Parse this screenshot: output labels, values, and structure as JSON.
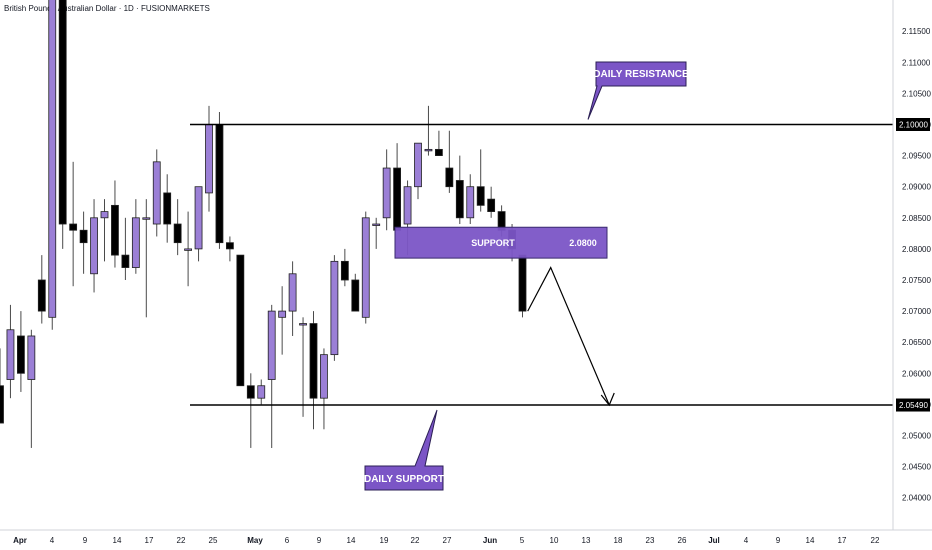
{
  "title": "British Pound / Australian Dollar · 1D · FUSIONMARKETS",
  "colors": {
    "up_fill": "#9b7fd6",
    "down_fill": "#000000",
    "wick": "#4a4a4a",
    "annotation": "#7b55c6",
    "line": "#000000"
  },
  "chart_data": {
    "type": "candlestick",
    "title": "British Pound / Australian Dollar · 1D · FUSIONMARKETS",
    "ylim": [
      2.036,
      2.122
    ],
    "y_ticks": [
      2.04,
      2.045,
      2.05,
      2.055,
      2.06,
      2.065,
      2.07,
      2.075,
      2.08,
      2.085,
      2.09,
      2.095,
      2.1,
      2.105,
      2.11,
      2.115
    ],
    "x_ticks": [
      "Apr",
      "4",
      "9",
      "14",
      "17",
      "22",
      "25",
      "May",
      "6",
      "9",
      "14",
      "19",
      "22",
      "27",
      "Jun",
      "5",
      "10",
      "13",
      "18",
      "23",
      "26",
      "Jul",
      "4",
      "9",
      "14",
      "17",
      "22"
    ],
    "candles": [
      {
        "o": 2.058,
        "h": 2.064,
        "l": 2.052,
        "c": 2.052
      },
      {
        "o": 2.059,
        "h": 2.071,
        "l": 2.056,
        "c": 2.067
      },
      {
        "o": 2.066,
        "h": 2.07,
        "l": 2.057,
        "c": 2.06
      },
      {
        "o": 2.059,
        "h": 2.067,
        "l": 2.048,
        "c": 2.066
      },
      {
        "o": 2.075,
        "h": 2.079,
        "l": 2.068,
        "c": 2.07
      },
      {
        "o": 2.069,
        "h": 2.122,
        "l": 2.067,
        "c": 2.122
      },
      {
        "o": 2.122,
        "h": 2.122,
        "l": 2.08,
        "c": 2.084
      },
      {
        "o": 2.084,
        "h": 2.094,
        "l": 2.074,
        "c": 2.083
      },
      {
        "o": 2.083,
        "h": 2.086,
        "l": 2.076,
        "c": 2.081
      },
      {
        "o": 2.076,
        "h": 2.088,
        "l": 2.073,
        "c": 2.085
      },
      {
        "o": 2.085,
        "h": 2.088,
        "l": 2.078,
        "c": 2.086
      },
      {
        "o": 2.087,
        "h": 2.091,
        "l": 2.077,
        "c": 2.079
      },
      {
        "o": 2.079,
        "h": 2.085,
        "l": 2.075,
        "c": 2.077
      },
      {
        "o": 2.077,
        "h": 2.088,
        "l": 2.076,
        "c": 2.085
      },
      {
        "o": 2.085,
        "h": 2.088,
        "l": 2.069,
        "c": 2.085
      },
      {
        "o": 2.084,
        "h": 2.096,
        "l": 2.082,
        "c": 2.094
      },
      {
        "o": 2.089,
        "h": 2.092,
        "l": 2.081,
        "c": 2.084
      },
      {
        "o": 2.084,
        "h": 2.088,
        "l": 2.079,
        "c": 2.081
      },
      {
        "o": 2.08,
        "h": 2.086,
        "l": 2.074,
        "c": 2.08
      },
      {
        "o": 2.08,
        "h": 2.09,
        "l": 2.078,
        "c": 2.09
      },
      {
        "o": 2.089,
        "h": 2.103,
        "l": 2.086,
        "c": 2.1
      },
      {
        "o": 2.1,
        "h": 2.102,
        "l": 2.08,
        "c": 2.081
      },
      {
        "o": 2.081,
        "h": 2.082,
        "l": 2.078,
        "c": 2.08
      },
      {
        "o": 2.079,
        "h": 2.079,
        "l": 2.058,
        "c": 2.058
      },
      {
        "o": 2.058,
        "h": 2.06,
        "l": 2.048,
        "c": 2.056
      },
      {
        "o": 2.056,
        "h": 2.059,
        "l": 2.055,
        "c": 2.058
      },
      {
        "o": 2.059,
        "h": 2.071,
        "l": 2.048,
        "c": 2.07
      },
      {
        "o": 2.069,
        "h": 2.074,
        "l": 2.063,
        "c": 2.07
      },
      {
        "o": 2.07,
        "h": 2.078,
        "l": 2.066,
        "c": 2.076
      },
      {
        "o": 2.068,
        "h": 2.069,
        "l": 2.053,
        "c": 2.068
      },
      {
        "o": 2.068,
        "h": 2.07,
        "l": 2.051,
        "c": 2.056
      },
      {
        "o": 2.056,
        "h": 2.064,
        "l": 2.051,
        "c": 2.063
      },
      {
        "o": 2.063,
        "h": 2.079,
        "l": 2.062,
        "c": 2.078
      },
      {
        "o": 2.078,
        "h": 2.08,
        "l": 2.074,
        "c": 2.075
      },
      {
        "o": 2.075,
        "h": 2.076,
        "l": 2.07,
        "c": 2.07
      },
      {
        "o": 2.069,
        "h": 2.086,
        "l": 2.068,
        "c": 2.085
      },
      {
        "o": 2.084,
        "h": 2.085,
        "l": 2.08,
        "c": 2.084
      },
      {
        "o": 2.085,
        "h": 2.096,
        "l": 2.083,
        "c": 2.093
      },
      {
        "o": 2.093,
        "h": 2.097,
        "l": 2.083,
        "c": 2.083
      },
      {
        "o": 2.084,
        "h": 2.091,
        "l": 2.079,
        "c": 2.09
      },
      {
        "o": 2.09,
        "h": 2.097,
        "l": 2.088,
        "c": 2.097
      },
      {
        "o": 2.096,
        "h": 2.103,
        "l": 2.095,
        "c": 2.096
      },
      {
        "o": 2.096,
        "h": 2.099,
        "l": 2.095,
        "c": 2.095
      },
      {
        "o": 2.093,
        "h": 2.099,
        "l": 2.089,
        "c": 2.09
      },
      {
        "o": 2.091,
        "h": 2.095,
        "l": 2.084,
        "c": 2.085
      },
      {
        "o": 2.085,
        "h": 2.092,
        "l": 2.084,
        "c": 2.09
      },
      {
        "o": 2.09,
        "h": 2.096,
        "l": 2.086,
        "c": 2.087
      },
      {
        "o": 2.088,
        "h": 2.09,
        "l": 2.085,
        "c": 2.086
      },
      {
        "o": 2.086,
        "h": 2.087,
        "l": 2.082,
        "c": 2.083
      },
      {
        "o": 2.083,
        "h": 2.084,
        "l": 2.078,
        "c": 2.08
      },
      {
        "o": 2.079,
        "h": 2.079,
        "l": 2.069,
        "c": 2.07
      }
    ],
    "levels": [
      {
        "name": "DAILY RESISTANCE",
        "value": 2.1,
        "axis_label": "2.10000"
      },
      {
        "name": "DAILY SUPPORT",
        "value": 2.0549,
        "axis_label": "2.05490"
      }
    ],
    "support_zone": {
      "label": "SUPPORT",
      "value_label": "2.0800",
      "low": 2.079,
      "high": 2.083
    },
    "projection": [
      {
        "bar": 50.5,
        "y": 2.07
      },
      {
        "bar": 52.7,
        "y": 2.077
      },
      {
        "bar": 58.3,
        "y": 2.0549
      }
    ]
  },
  "annotations": {
    "resistance_label": "DAILY RESISTANCE",
    "support_label": "DAILY SUPPORT",
    "zone_label": "SUPPORT",
    "zone_value": "2.0800"
  }
}
